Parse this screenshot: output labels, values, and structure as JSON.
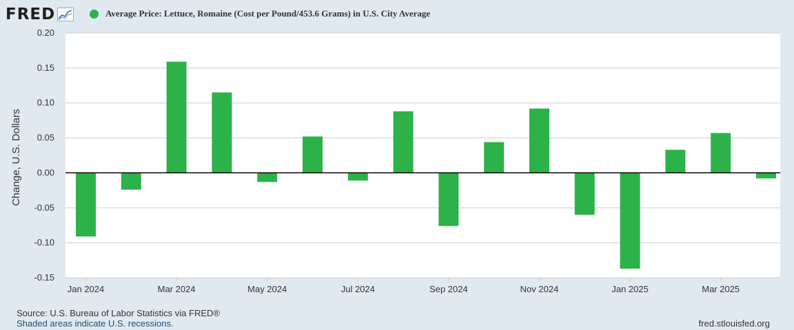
{
  "header": {
    "logo": "FRED",
    "logo_icon": "line-chart-icon"
  },
  "legend": {
    "label": "Average Price: Lettuce, Romaine (Cost per Pound/453.6 Grams) in U.S. City Average"
  },
  "footer": {
    "source": "Source: U.S. Bureau of Labor Statistics via FRED®",
    "recessions": "Shaded areas indicate U.S. recessions.",
    "url": "fred.stlouisfed.org"
  },
  "colors": {
    "bar": "#2db24a",
    "background": "#e1e9f0",
    "plot": "#ffffff",
    "grid": "#cccccc",
    "text": "#333333",
    "zero_line": "#000000"
  },
  "chart_data": {
    "type": "bar",
    "ylabel": "Change, U.S. Dollars",
    "ylim": [
      -0.15,
      0.2
    ],
    "yticks": [
      0.2,
      0.15,
      0.1,
      0.05,
      0.0,
      -0.05,
      -0.1,
      -0.15
    ],
    "ytick_labels": [
      "0.20",
      "0.15",
      "0.10",
      "0.05",
      "0.00",
      "-0.05",
      "-0.10",
      "-0.15"
    ],
    "categories": [
      "Jan 2024",
      "Feb 2024",
      "Mar 2024",
      "Apr 2024",
      "May 2024",
      "Jun 2024",
      "Jul 2024",
      "Aug 2024",
      "Sep 2024",
      "Oct 2024",
      "Nov 2024",
      "Dec 2024",
      "Jan 2025",
      "Feb 2025",
      "Mar 2025",
      "Apr 2025"
    ],
    "values": [
      -0.091,
      -0.024,
      0.159,
      0.115,
      -0.013,
      0.052,
      -0.011,
      0.088,
      -0.076,
      0.044,
      0.092,
      -0.06,
      -0.137,
      0.033,
      0.057,
      -0.008
    ],
    "xtick_labels": [
      {
        "index": 0,
        "label": "Jan 2024"
      },
      {
        "index": 2,
        "label": "Mar 2024"
      },
      {
        "index": 4,
        "label": "May 2024"
      },
      {
        "index": 6,
        "label": "Jul 2024"
      },
      {
        "index": 8,
        "label": "Sep 2024"
      },
      {
        "index": 10,
        "label": "Nov 2024"
      },
      {
        "index": 12,
        "label": "Jan 2025"
      },
      {
        "index": 14,
        "label": "Mar 2025"
      }
    ],
    "grid": true
  }
}
